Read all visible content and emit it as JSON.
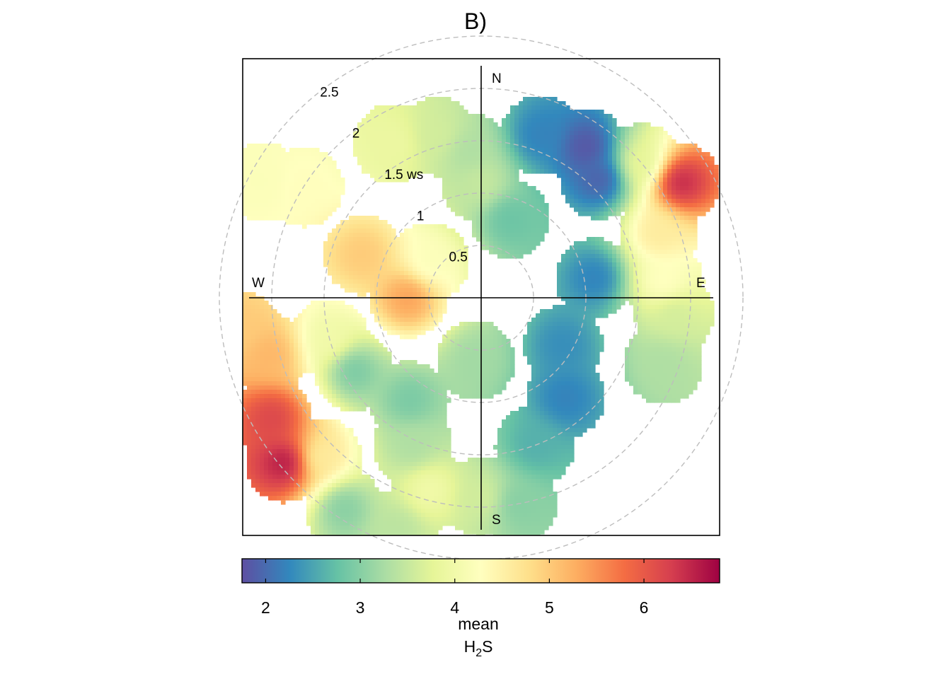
{
  "chart_data": {
    "type": "heatmap",
    "subtype": "polar-plot",
    "title": "B)",
    "radial_variable": "ws",
    "radial_ticks": [
      0.5,
      1,
      1.5,
      2,
      2.5
    ],
    "radial_tick_labels": [
      "0.5",
      "1",
      "1.5 ws",
      "2",
      "2.5"
    ],
    "compass_labels": {
      "north": "N",
      "east": "E",
      "south": "S",
      "west": "W"
    },
    "colorbar": {
      "title_line1": "mean",
      "title_line2_main": "H",
      "title_line2_sub": "2",
      "title_line2_end": "S",
      "range": [
        1.75,
        6.8
      ],
      "ticks": [
        2,
        3,
        4,
        5,
        6
      ],
      "tick_labels": [
        "2",
        "3",
        "4",
        "5",
        "6"
      ],
      "colors": [
        "#5e4fa2",
        "#3288bd",
        "#66c2a5",
        "#abdda4",
        "#e6f598",
        "#ffffbf",
        "#fee08b",
        "#fdae61",
        "#f46d43",
        "#d53e4f",
        "#9e0142"
      ]
    },
    "blobs": [
      {
        "dir": 298,
        "ws": 2.35,
        "value": 4.2
      },
      {
        "dir": 302,
        "ws": 2.0,
        "value": 4.3
      },
      {
        "dir": 330,
        "ws": 1.7,
        "value": 3.9
      },
      {
        "dir": 345,
        "ws": 1.6,
        "value": 3.6
      },
      {
        "dir": 355,
        "ws": 1.4,
        "value": 3.3
      },
      {
        "dir": 0,
        "ws": 1.1,
        "value": 3.5
      },
      {
        "dir": 20,
        "ws": 1.65,
        "value": 2.2
      },
      {
        "dir": 35,
        "ws": 1.75,
        "value": 1.8
      },
      {
        "dir": 45,
        "ws": 1.6,
        "value": 1.9
      },
      {
        "dir": 50,
        "ws": 2.0,
        "value": 3.8
      },
      {
        "dir": 60,
        "ws": 2.2,
        "value": 6.5
      },
      {
        "dir": 70,
        "ws": 1.8,
        "value": 4.6
      },
      {
        "dir": 85,
        "ws": 1.75,
        "value": 4.3
      },
      {
        "dir": 95,
        "ws": 1.85,
        "value": 3.6
      },
      {
        "dir": 110,
        "ws": 1.85,
        "value": 3.3
      },
      {
        "dir": 80,
        "ws": 1.1,
        "value": 2.2
      },
      {
        "dir": 120,
        "ws": 0.9,
        "value": 2.3
      },
      {
        "dir": 140,
        "ws": 1.25,
        "value": 2.2
      },
      {
        "dir": 160,
        "ws": 1.5,
        "value": 2.6
      },
      {
        "dir": 170,
        "ws": 2.0,
        "value": 3.0
      },
      {
        "dir": 180,
        "ws": 1.9,
        "value": 3.6
      },
      {
        "dir": 195,
        "ws": 1.9,
        "value": 4.0
      },
      {
        "dir": 200,
        "ws": 2.35,
        "value": 3.4
      },
      {
        "dir": 213,
        "ws": 2.4,
        "value": 3.0
      },
      {
        "dir": 205,
        "ws": 1.55,
        "value": 3.3
      },
      {
        "dir": 225,
        "ws": 2.15,
        "value": 4.6
      },
      {
        "dir": 230,
        "ws": 2.45,
        "value": 6.6
      },
      {
        "dir": 240,
        "ws": 2.3,
        "value": 6.2
      },
      {
        "dir": 255,
        "ws": 2.1,
        "value": 5.2
      },
      {
        "dir": 262,
        "ws": 2.3,
        "value": 5.0
      },
      {
        "dir": 240,
        "ws": 1.4,
        "value": 2.9
      },
      {
        "dir": 215,
        "ws": 1.2,
        "value": 2.9
      },
      {
        "dir": 290,
        "ws": 1.2,
        "value": 5.0
      },
      {
        "dir": 270,
        "ws": 0.7,
        "value": 5.4
      },
      {
        "dir": 305,
        "ws": 0.6,
        "value": 4.2
      },
      {
        "dir": 185,
        "ws": 0.6,
        "value": 3.2
      },
      {
        "dir": 20,
        "ws": 0.8,
        "value": 2.8
      },
      {
        "dir": 255,
        "ws": 1.5,
        "value": 4.0
      }
    ]
  }
}
